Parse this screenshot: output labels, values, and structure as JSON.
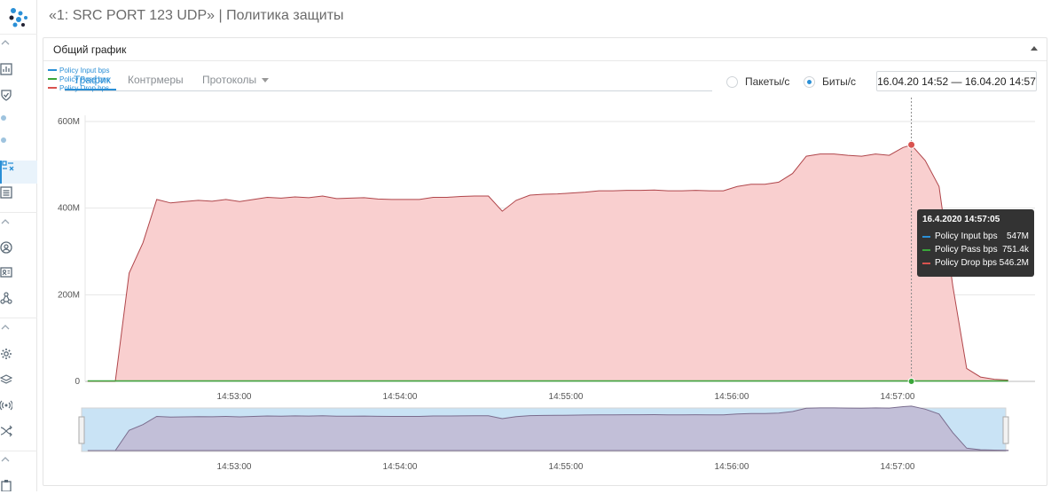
{
  "header": {
    "title": "«1: SRC PORT 123 UDP» | Политика защиты"
  },
  "sidebar": {
    "items": [
      {
        "icon": "chevron-up-icon"
      },
      {
        "icon": "chart-icon"
      },
      {
        "icon": "shield-check-icon"
      },
      {
        "icon": "dot-icon"
      },
      {
        "icon": "dot-icon"
      },
      {
        "icon": "policy-rules-icon",
        "active": true
      },
      {
        "icon": "list-icon"
      },
      {
        "icon": "chevron-up-icon"
      },
      {
        "icon": "user-circle-icon"
      },
      {
        "icon": "id-card-icon"
      },
      {
        "icon": "network-icon"
      },
      {
        "icon": "chevron-up-icon"
      },
      {
        "icon": "gear-icon"
      },
      {
        "icon": "layers-icon"
      },
      {
        "icon": "broadcast-icon"
      },
      {
        "icon": "routing-icon"
      },
      {
        "icon": "chevron-up-icon"
      },
      {
        "icon": "clipboard-icon"
      }
    ]
  },
  "panel": {
    "title": "Общий график"
  },
  "tabs": [
    {
      "label": "Трафик",
      "active": true
    },
    {
      "label": "Контрмеры",
      "active": false
    },
    {
      "label": "Протоколы",
      "active": false,
      "dropdown": true
    }
  ],
  "units": {
    "options": [
      {
        "label": "Пакеты/с",
        "selected": false
      },
      {
        "label": "Биты/с",
        "selected": true
      }
    ]
  },
  "daterange": {
    "value": "16.04.20 14:52 — 16.04.20 14:57"
  },
  "legend": [
    {
      "name": "Policy Input bps",
      "color": "#2a8fd6"
    },
    {
      "name": "Policy Pass bps",
      "color": "#3aa63a"
    },
    {
      "name": "Policy Drop bps",
      "color": "#d9534f"
    }
  ],
  "tooltip": {
    "title": "16.4.2020 14:57:05",
    "rows": [
      {
        "name": "Policy Input bps",
        "value": "547M",
        "color": "#2a8fd6"
      },
      {
        "name": "Policy Pass bps",
        "value": "751.4k",
        "color": "#3aa63a"
      },
      {
        "name": "Policy Drop bps",
        "value": "546.2M",
        "color": "#d9534f"
      }
    ]
  },
  "chart_data": {
    "type": "area",
    "ylim": [
      0,
      600000000
    ],
    "yticks": [
      {
        "value": 0,
        "label": "0"
      },
      {
        "value": 200000000,
        "label": "200M"
      },
      {
        "value": 400000000,
        "label": "400M"
      },
      {
        "value": 600000000,
        "label": "600M"
      }
    ],
    "xticks": [
      "14:53:00",
      "14:54:00",
      "14:55:00",
      "14:56:00",
      "14:57:00"
    ],
    "crosshair_x": "14:57:05",
    "series": [
      {
        "name": "Policy Drop bps",
        "color": "#d9534f",
        "fill": "#f9cfcf",
        "x": [
          "14:52:07",
          "14:52:12",
          "14:52:17",
          "14:52:22",
          "14:52:27",
          "14:52:32",
          "14:52:37",
          "14:52:42",
          "14:52:47",
          "14:52:52",
          "14:52:57",
          "14:53:02",
          "14:53:07",
          "14:53:12",
          "14:53:17",
          "14:53:22",
          "14:53:27",
          "14:53:32",
          "14:53:37",
          "14:53:42",
          "14:53:47",
          "14:53:52",
          "14:53:57",
          "14:54:02",
          "14:54:07",
          "14:54:12",
          "14:54:17",
          "14:54:22",
          "14:54:27",
          "14:54:32",
          "14:54:37",
          "14:54:42",
          "14:54:47",
          "14:54:52",
          "14:54:57",
          "14:55:02",
          "14:55:07",
          "14:55:12",
          "14:55:17",
          "14:55:22",
          "14:55:27",
          "14:55:32",
          "14:55:37",
          "14:55:42",
          "14:55:47",
          "14:55:52",
          "14:55:57",
          "14:56:02",
          "14:56:07",
          "14:56:12",
          "14:56:17",
          "14:56:22",
          "14:56:27",
          "14:56:32",
          "14:56:37",
          "14:56:42",
          "14:56:47",
          "14:56:52",
          "14:56:57",
          "14:57:02",
          "14:57:05",
          "14:57:10",
          "14:57:15",
          "14:57:20",
          "14:57:25",
          "14:57:30",
          "14:57:35",
          "14:57:40"
        ],
        "values": [
          0,
          0,
          0,
          250,
          320,
          420,
          412,
          415,
          418,
          416,
          420,
          415,
          420,
          425,
          423,
          426,
          424,
          428,
          422,
          423,
          424,
          421,
          420,
          420,
          420,
          425,
          425,
          427,
          428,
          428,
          393,
          418,
          430,
          432,
          433,
          435,
          437,
          440,
          440,
          441,
          441,
          442,
          440,
          440,
          441,
          440,
          440,
          450,
          455,
          455,
          460,
          480,
          520,
          525,
          525,
          522,
          520,
          525,
          522,
          540,
          546,
          510,
          450,
          220,
          30,
          10,
          5,
          3
        ]
      },
      {
        "name": "Policy Pass bps",
        "color": "#3aa63a",
        "x": [
          "14:52:07",
          "14:57:40"
        ],
        "values": [
          0.75,
          0.75
        ]
      }
    ]
  },
  "navigator": {
    "xticks": [
      "14:53:00",
      "14:54:00",
      "14:55:00",
      "14:56:00",
      "14:57:00"
    ]
  }
}
